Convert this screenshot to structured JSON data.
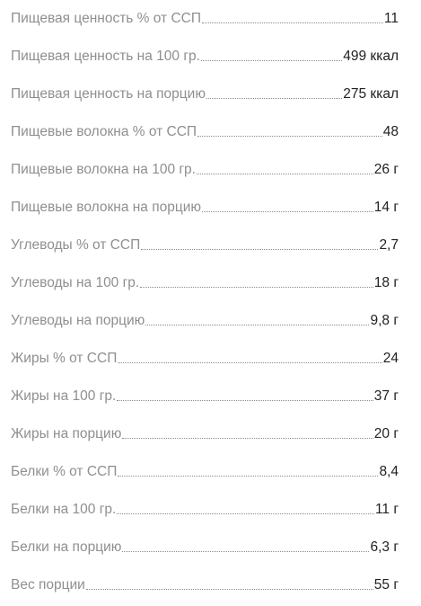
{
  "rows": [
    {
      "label": "Пищевая ценность % от ССП",
      "value": "11"
    },
    {
      "label": "Пищевая ценность на 100 гр.",
      "value": "499 ккал"
    },
    {
      "label": "Пищевая ценность на порцию",
      "value": "275 ккал"
    },
    {
      "label": "Пищевые волокна % от ССП",
      "value": "48"
    },
    {
      "label": "Пищевые волокна на 100 гр.",
      "value": "26 г"
    },
    {
      "label": "Пищевые волокна на порцию",
      "value": "14 г"
    },
    {
      "label": "Углеводы % от ССП",
      "value": "2,7"
    },
    {
      "label": "Углеводы на 100 гр.",
      "value": "18 г"
    },
    {
      "label": "Углеводы на порцию",
      "value": "9,8 г"
    },
    {
      "label": "Жиры % от ССП",
      "value": "24"
    },
    {
      "label": "Жиры на 100 гр.",
      "value": "37 г"
    },
    {
      "label": "Жиры на порцию",
      "value": "20 г"
    },
    {
      "label": "Белки % от ССП",
      "value": "8,4"
    },
    {
      "label": "Белки на 100 гр.",
      "value": "11 г"
    },
    {
      "label": "Белки на порцию",
      "value": "6,3 г"
    },
    {
      "label": "Вес порции",
      "value": "55 г"
    }
  ]
}
